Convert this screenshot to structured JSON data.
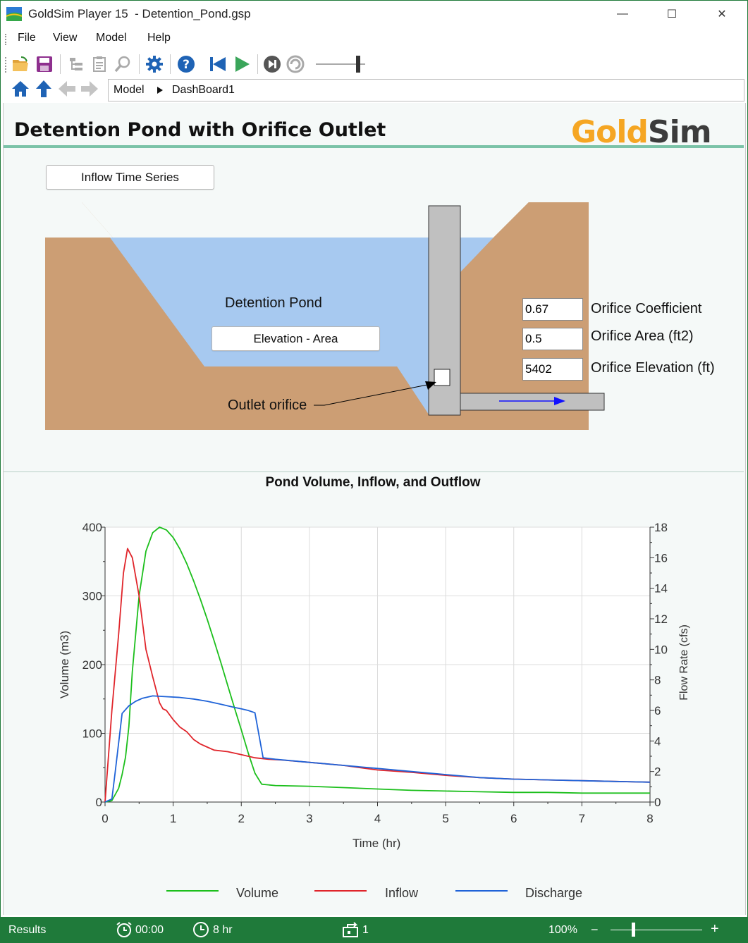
{
  "window": {
    "title": "GoldSim Player 15  - Detention_Pond.gsp",
    "controls": {
      "minimize": "—",
      "maximize": "☐",
      "close": "✕"
    }
  },
  "menu": {
    "items": [
      "File",
      "View",
      "Model",
      "Help"
    ]
  },
  "toolbar": {
    "icons": [
      "open-folder-icon",
      "save-icon",
      "browser-icon",
      "notes-icon",
      "search-icon",
      "settings-gear-icon",
      "help-icon",
      "reset-to-start-icon",
      "run-icon",
      "step-icon",
      "pause-icon",
      "time-slider"
    ]
  },
  "breadcrumb": {
    "items": [
      "Model",
      "DashBoard1"
    ]
  },
  "dashboard": {
    "title": "Detention Pond with Orifice Outlet",
    "logo": {
      "gold": "Gold",
      "sim": "Sim",
      "gold_color": "#f5a623",
      "sim_color": "#3c3c3c"
    },
    "inflow_button": "Inflow Time Series",
    "pond_label": "Detention Pond",
    "elevation_button": "Elevation - Area",
    "outlet_label": "Outlet orifice",
    "params": [
      {
        "value": "0.67",
        "label": "Orifice Coefficient"
      },
      {
        "value": "0.5",
        "label": "Orifice Area (ft2)"
      },
      {
        "value": "5402",
        "label": "Orifice Elevation (ft)"
      }
    ],
    "colors": {
      "soil": "#cc9e74",
      "water": "#a7c9f0",
      "structure": "#c0c0c0",
      "flow_arrow": "#1010ff"
    }
  },
  "chart_data": {
    "type": "line",
    "title": "Pond Volume, Inflow, and Outflow",
    "xlabel": "Time (hr)",
    "ylabel": "Volume (m3)",
    "y2label": "Flow Rate (cfs)",
    "xlim": [
      0,
      8
    ],
    "ylim": [
      0,
      400
    ],
    "y2lim": [
      0,
      18
    ],
    "x_ticks": [
      0,
      1,
      2,
      3,
      4,
      5,
      6,
      7,
      8
    ],
    "y_ticks": [
      0,
      100,
      200,
      300,
      400
    ],
    "y2_ticks": [
      0,
      2,
      4,
      6,
      8,
      10,
      12,
      14,
      16,
      18
    ],
    "grid": true,
    "legend_position": "bottom",
    "series": [
      {
        "name": "Volume",
        "axis": "left",
        "color": "#1cbf1c",
        "x": [
          0,
          0.1,
          0.2,
          0.25,
          0.3,
          0.35,
          0.4,
          0.5,
          0.6,
          0.7,
          0.8,
          0.9,
          1.0,
          1.1,
          1.2,
          1.3,
          1.4,
          1.5,
          1.6,
          1.7,
          1.8,
          1.9,
          2.0,
          2.1,
          2.2,
          2.3,
          2.5,
          3.0,
          3.5,
          4.0,
          4.5,
          5.0,
          5.5,
          6.0,
          6.5,
          7.0,
          7.5,
          8.0
        ],
        "y": [
          0,
          2,
          20,
          40,
          65,
          110,
          190,
          300,
          365,
          392,
          400,
          396,
          385,
          368,
          347,
          322,
          295,
          266,
          235,
          203,
          170,
          137,
          105,
          72,
          42,
          26,
          24,
          23,
          21,
          19,
          17,
          16,
          15,
          14,
          14,
          13,
          13,
          13
        ]
      },
      {
        "name": "Inflow",
        "axis": "right",
        "color": "#e0252b",
        "x": [
          0,
          0.1,
          0.2,
          0.27,
          0.33,
          0.4,
          0.5,
          0.6,
          0.7,
          0.8,
          0.85,
          0.9,
          1.0,
          1.1,
          1.2,
          1.3,
          1.4,
          1.5,
          1.6,
          1.8,
          2.0,
          2.2,
          2.4,
          2.6,
          3.0,
          3.5,
          4.0,
          4.5,
          5.0,
          5.5,
          6.0,
          6.5,
          7.0,
          7.5,
          8.0
        ],
        "y": [
          0,
          6,
          11,
          15,
          16.6,
          16,
          13.5,
          10,
          8.2,
          6.5,
          6.1,
          6.0,
          5.4,
          4.9,
          4.6,
          4.1,
          3.8,
          3.6,
          3.4,
          3.3,
          3.1,
          2.9,
          2.8,
          2.75,
          2.6,
          2.4,
          2.1,
          1.95,
          1.75,
          1.6,
          1.5,
          1.45,
          1.4,
          1.35,
          1.3
        ]
      },
      {
        "name": "Discharge",
        "axis": "right",
        "color": "#1f63d8",
        "x": [
          0,
          0.1,
          0.15,
          0.25,
          0.35,
          0.45,
          0.55,
          0.7,
          0.9,
          1.1,
          1.3,
          1.5,
          1.7,
          1.9,
          2.0,
          2.1,
          2.2,
          2.32,
          2.5,
          3.0,
          3.5,
          4.0,
          4.5,
          5.0,
          5.5,
          6.0,
          6.5,
          7.0,
          7.5,
          8.0
        ],
        "y": [
          0,
          0.2,
          2.0,
          5.8,
          6.3,
          6.6,
          6.8,
          6.95,
          6.9,
          6.85,
          6.75,
          6.6,
          6.4,
          6.2,
          6.1,
          6.0,
          5.85,
          2.9,
          2.8,
          2.6,
          2.4,
          2.2,
          2.0,
          1.8,
          1.6,
          1.5,
          1.45,
          1.4,
          1.35,
          1.3
        ]
      }
    ]
  },
  "status": {
    "label": "Results",
    "time": "00:00",
    "duration": "8 hr",
    "realization": "1",
    "zoom": "100%",
    "zoom_minus": "−",
    "zoom_plus": "+"
  }
}
